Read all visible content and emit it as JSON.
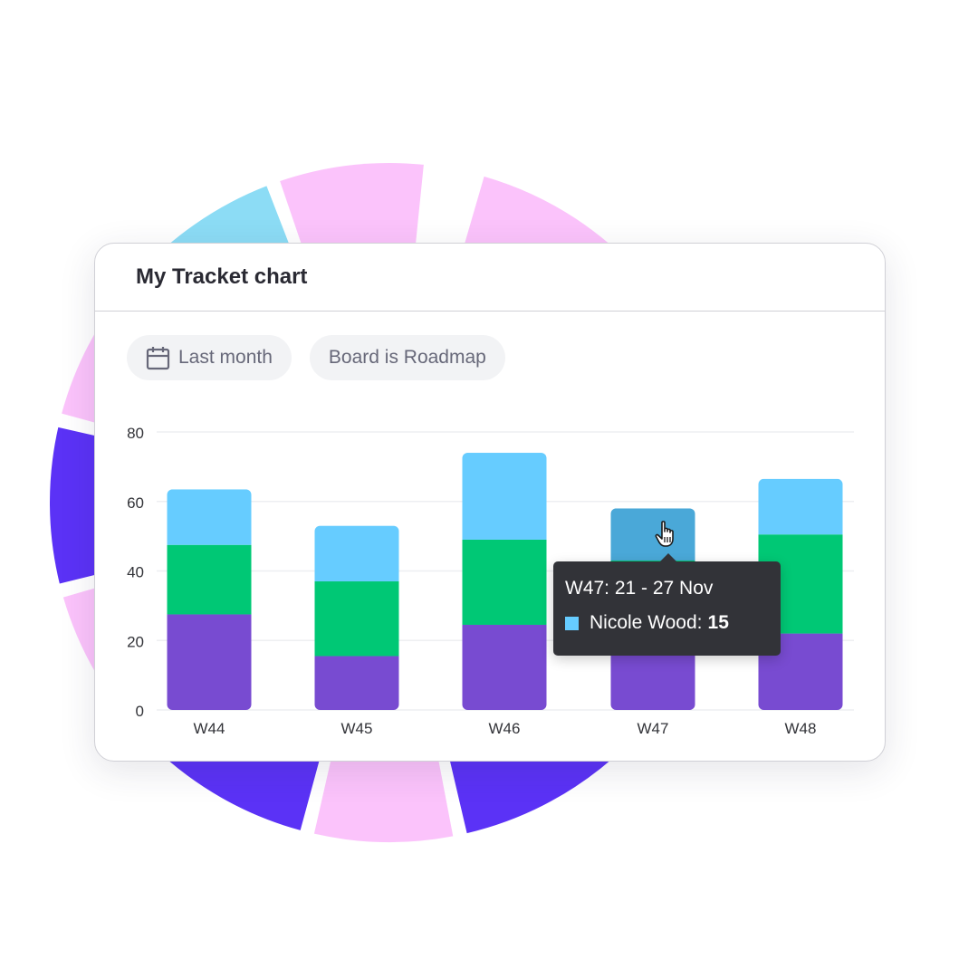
{
  "card": {
    "title": "My Tracket chart"
  },
  "filters": {
    "date_label": "Last month",
    "board_label": "Board is Roadmap",
    "date_icon": "calendar-icon"
  },
  "tooltip": {
    "title": "W47: 21 - 27 Nov",
    "series_name": "Nicole Wood",
    "series_suffix": ":",
    "value": "15",
    "swatch_color": "#66ccff"
  },
  "cursor_icon": "hand-pointer-icon",
  "background_ring_colors": [
    "#5b32f6",
    "#fbc3fb",
    "#8cdcf5"
  ],
  "chart_data": {
    "type": "bar",
    "stacked": true,
    "categories": [
      "W44",
      "W45",
      "W46",
      "W47",
      "W48"
    ],
    "series": [
      {
        "values": [
          27.5,
          15.5,
          24.5,
          26,
          22
        ],
        "color": "#784bd1"
      },
      {
        "values": [
          20,
          21.5,
          24.5,
          17,
          28.5
        ],
        "color": "#00c875"
      },
      {
        "values": [
          16,
          16,
          25,
          15,
          16
        ],
        "color": "#66ccff"
      }
    ],
    "ylim": [
      0,
      80
    ],
    "yticks": [
      0,
      20,
      40,
      60,
      80
    ],
    "grid": true,
    "highlighted_category": "W47",
    "highlighted_series_color": "#4aa8d8"
  }
}
